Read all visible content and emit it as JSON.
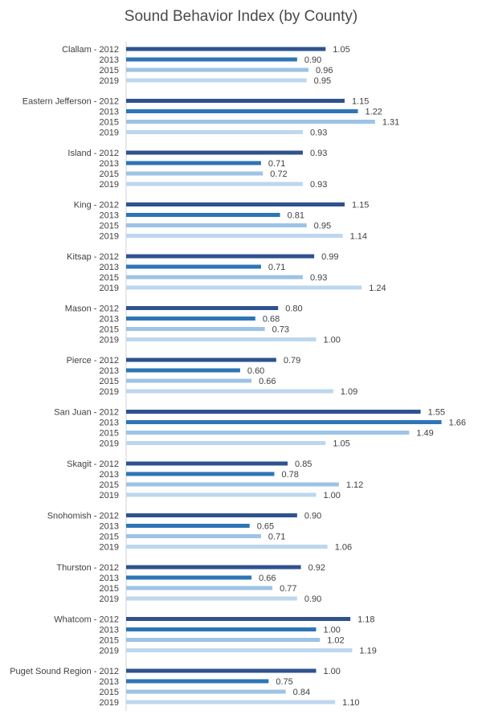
{
  "chart_data": {
    "type": "bar",
    "orientation": "horizontal",
    "title": "Sound Behavior Index (by County)",
    "xlabel": "",
    "ylabel": "",
    "grid": false,
    "legend": "none",
    "groups": [
      {
        "county": "Clallam",
        "rows": [
          {
            "label": "Clallam - 2012",
            "year": "2012",
            "value": 1.05
          },
          {
            "label": "2013",
            "year": "2013",
            "value": 0.9
          },
          {
            "label": "2015",
            "year": "2015",
            "value": 0.96
          },
          {
            "label": "2019",
            "year": "2019",
            "value": 0.95
          }
        ]
      },
      {
        "county": "Eastern Jefferson",
        "rows": [
          {
            "label": "Eastern Jefferson - 2012",
            "year": "2012",
            "value": 1.15
          },
          {
            "label": "2013",
            "year": "2013",
            "value": 1.22
          },
          {
            "label": "2015",
            "year": "2015",
            "value": 1.31
          },
          {
            "label": "2019",
            "year": "2019",
            "value": 0.93
          }
        ]
      },
      {
        "county": "Island",
        "rows": [
          {
            "label": "Island - 2012",
            "year": "2012",
            "value": 0.93
          },
          {
            "label": "2013",
            "year": "2013",
            "value": 0.71
          },
          {
            "label": "2015",
            "year": "2015",
            "value": 0.72
          },
          {
            "label": "2019",
            "year": "2019",
            "value": 0.93
          }
        ]
      },
      {
        "county": "King",
        "rows": [
          {
            "label": "King - 2012",
            "year": "2012",
            "value": 1.15
          },
          {
            "label": "2013",
            "year": "2013",
            "value": 0.81
          },
          {
            "label": "2015",
            "year": "2015",
            "value": 0.95
          },
          {
            "label": "2019",
            "year": "2019",
            "value": 1.14
          }
        ]
      },
      {
        "county": "Kitsap",
        "rows": [
          {
            "label": "Kitsap - 2012",
            "year": "2012",
            "value": 0.99
          },
          {
            "label": "2013",
            "year": "2013",
            "value": 0.71
          },
          {
            "label": "2015",
            "year": "2015",
            "value": 0.93
          },
          {
            "label": "2019",
            "year": "2019",
            "value": 1.24
          }
        ]
      },
      {
        "county": "Mason",
        "rows": [
          {
            "label": "Mason - 2012",
            "year": "2012",
            "value": 0.8
          },
          {
            "label": "2013",
            "year": "2013",
            "value": 0.68
          },
          {
            "label": "2015",
            "year": "2015",
            "value": 0.73
          },
          {
            "label": "2019",
            "year": "2019",
            "value": 1.0
          }
        ]
      },
      {
        "county": "Pierce",
        "rows": [
          {
            "label": "Pierce - 2012",
            "year": "2012",
            "value": 0.79
          },
          {
            "label": "2013",
            "year": "2013",
            "value": 0.6
          },
          {
            "label": "2015",
            "year": "2015",
            "value": 0.66
          },
          {
            "label": "2019",
            "year": "2019",
            "value": 1.09
          }
        ]
      },
      {
        "county": "San Juan",
        "rows": [
          {
            "label": "San Juan - 2012",
            "year": "2012",
            "value": 1.55
          },
          {
            "label": "2013",
            "year": "2013",
            "value": 1.66
          },
          {
            "label": "2015",
            "year": "2015",
            "value": 1.49
          },
          {
            "label": "2019",
            "year": "2019",
            "value": 1.05
          }
        ]
      },
      {
        "county": "Skagit",
        "rows": [
          {
            "label": "Skagit - 2012",
            "year": "2012",
            "value": 0.85
          },
          {
            "label": "2013",
            "year": "2013",
            "value": 0.78
          },
          {
            "label": "2015",
            "year": "2015",
            "value": 1.12
          },
          {
            "label": "2019",
            "year": "2019",
            "value": 1.0
          }
        ]
      },
      {
        "county": "Snohomish",
        "rows": [
          {
            "label": "Snohomish - 2012",
            "year": "2012",
            "value": 0.9
          },
          {
            "label": "2013",
            "year": "2013",
            "value": 0.65
          },
          {
            "label": "2015",
            "year": "2015",
            "value": 0.71
          },
          {
            "label": "2019",
            "year": "2019",
            "value": 1.06
          }
        ]
      },
      {
        "county": "Thurston",
        "rows": [
          {
            "label": "Thurston - 2012",
            "year": "2012",
            "value": 0.92
          },
          {
            "label": "2013",
            "year": "2013",
            "value": 0.66
          },
          {
            "label": "2015",
            "year": "2015",
            "value": 0.77
          },
          {
            "label": "2019",
            "year": "2019",
            "value": 0.9
          }
        ]
      },
      {
        "county": "Whatcom",
        "rows": [
          {
            "label": "Whatcom - 2012",
            "year": "2012",
            "value": 1.18
          },
          {
            "label": "2013",
            "year": "2013",
            "value": 1.0
          },
          {
            "label": "2015",
            "year": "2015",
            "value": 1.02
          },
          {
            "label": "2019",
            "year": "2019",
            "value": 1.19
          }
        ]
      },
      {
        "county": "Puget Sound Region",
        "rows": [
          {
            "label": "Puget Sound Region - 2012",
            "year": "2012",
            "value": 1.0
          },
          {
            "label": "2013",
            "year": "2013",
            "value": 0.75
          },
          {
            "label": "2015",
            "year": "2015",
            "value": 0.84
          },
          {
            "label": "2019",
            "year": "2019",
            "value": 1.1
          }
        ]
      }
    ],
    "xlim": [
      0,
      1.7
    ],
    "year_colors": {
      "2012": "#2f528f",
      "2013": "#2e75b6",
      "2015": "#9dc3e6",
      "2019": "#bdd7ee"
    }
  }
}
